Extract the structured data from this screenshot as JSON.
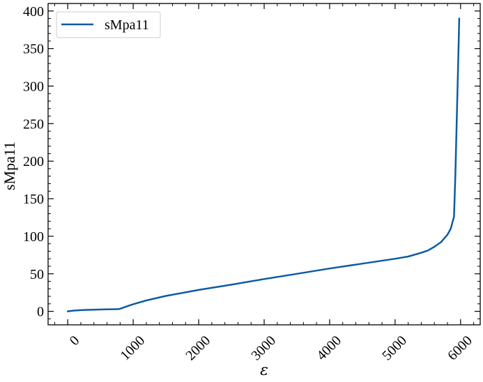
{
  "chart_data": {
    "type": "line",
    "title": "",
    "xlabel": "ε",
    "ylabel": "sMpa11",
    "xlim": [
      -300,
      6300
    ],
    "ylim": [
      -18,
      410
    ],
    "xticks": [
      0,
      1000,
      2000,
      3000,
      4000,
      5000,
      6000
    ],
    "xtick_labels": [
      "0",
      "1000",
      "2000",
      "3000",
      "4000",
      "5000",
      "6000"
    ],
    "yticks": [
      0,
      50,
      100,
      150,
      200,
      250,
      300,
      350,
      400
    ],
    "ytick_labels": [
      "0",
      "50",
      "100",
      "150",
      "200",
      "250",
      "300",
      "350",
      "400"
    ],
    "grid": false,
    "legend_position": "top-left",
    "series": [
      {
        "name": "sMpa11",
        "color": "#0c5ba4",
        "x": [
          0,
          100,
          200,
          300,
          400,
          500,
          600,
          700,
          780,
          820,
          900,
          1000,
          1200,
          1500,
          2000,
          2500,
          3000,
          3500,
          4000,
          4500,
          5000,
          5200,
          5400,
          5500,
          5600,
          5700,
          5800,
          5850,
          5900,
          5920,
          5940,
          5960,
          5980
        ],
        "y": [
          0,
          1,
          1.6,
          2,
          2.2,
          2.4,
          2.6,
          2.8,
          3,
          4,
          6.5,
          9.5,
          14.5,
          20.5,
          28.5,
          35.5,
          43,
          50,
          57,
          63.5,
          70,
          73,
          78,
          81,
          86,
          92,
          102,
          110,
          126,
          180,
          250,
          320,
          390
        ]
      }
    ]
  }
}
